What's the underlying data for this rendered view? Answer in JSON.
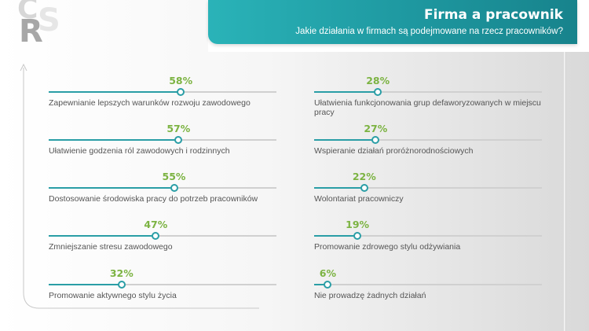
{
  "logo": {
    "c": "C",
    "s": "S",
    "r": "R"
  },
  "header": {
    "title": "Firma a pracownik",
    "subtitle": "Jakie działania w firmach są podejmowane na rzecz pracowników?"
  },
  "colors": {
    "accent": "#2a9ea6",
    "percent": "#7cb342",
    "label": "#555555",
    "track": "#d0d0d0"
  },
  "chart_data": {
    "type": "bar",
    "value_unit": "%",
    "xlim": [
      0,
      100
    ],
    "items": [
      {
        "label": "Zapewnianie lepszych  warunków rozwoju zawodowego",
        "value": 58,
        "value_text": "58%"
      },
      {
        "label": "Ułatwienie godzenia ról zawodowych i rodzinnych",
        "value": 57,
        "value_text": "57%"
      },
      {
        "label": "Dostosowanie środowiska pracy do potrzeb pracowników",
        "value": 55,
        "value_text": "55%"
      },
      {
        "label": "Zmniejszanie stresu zawodowego",
        "value": 47,
        "value_text": "47%"
      },
      {
        "label": "Promowanie aktywnego stylu życia",
        "value": 32,
        "value_text": "32%"
      },
      {
        "label": "Ułatwienia funkcjonowania grup defaworyzowanych w miejscu pracy",
        "value": 28,
        "value_text": "28%"
      },
      {
        "label": "Wspieranie działań proróżnorodnościowych",
        "value": 27,
        "value_text": "27%"
      },
      {
        "label": "Wolontariat pracowniczy",
        "value": 22,
        "value_text": "22%"
      },
      {
        "label": "Promowanie zdrowego stylu odżywiania",
        "value": 19,
        "value_text": "19%"
      },
      {
        "label": "Nie prowadzę żadnych działań",
        "value": 6,
        "value_text": "6%"
      }
    ]
  }
}
